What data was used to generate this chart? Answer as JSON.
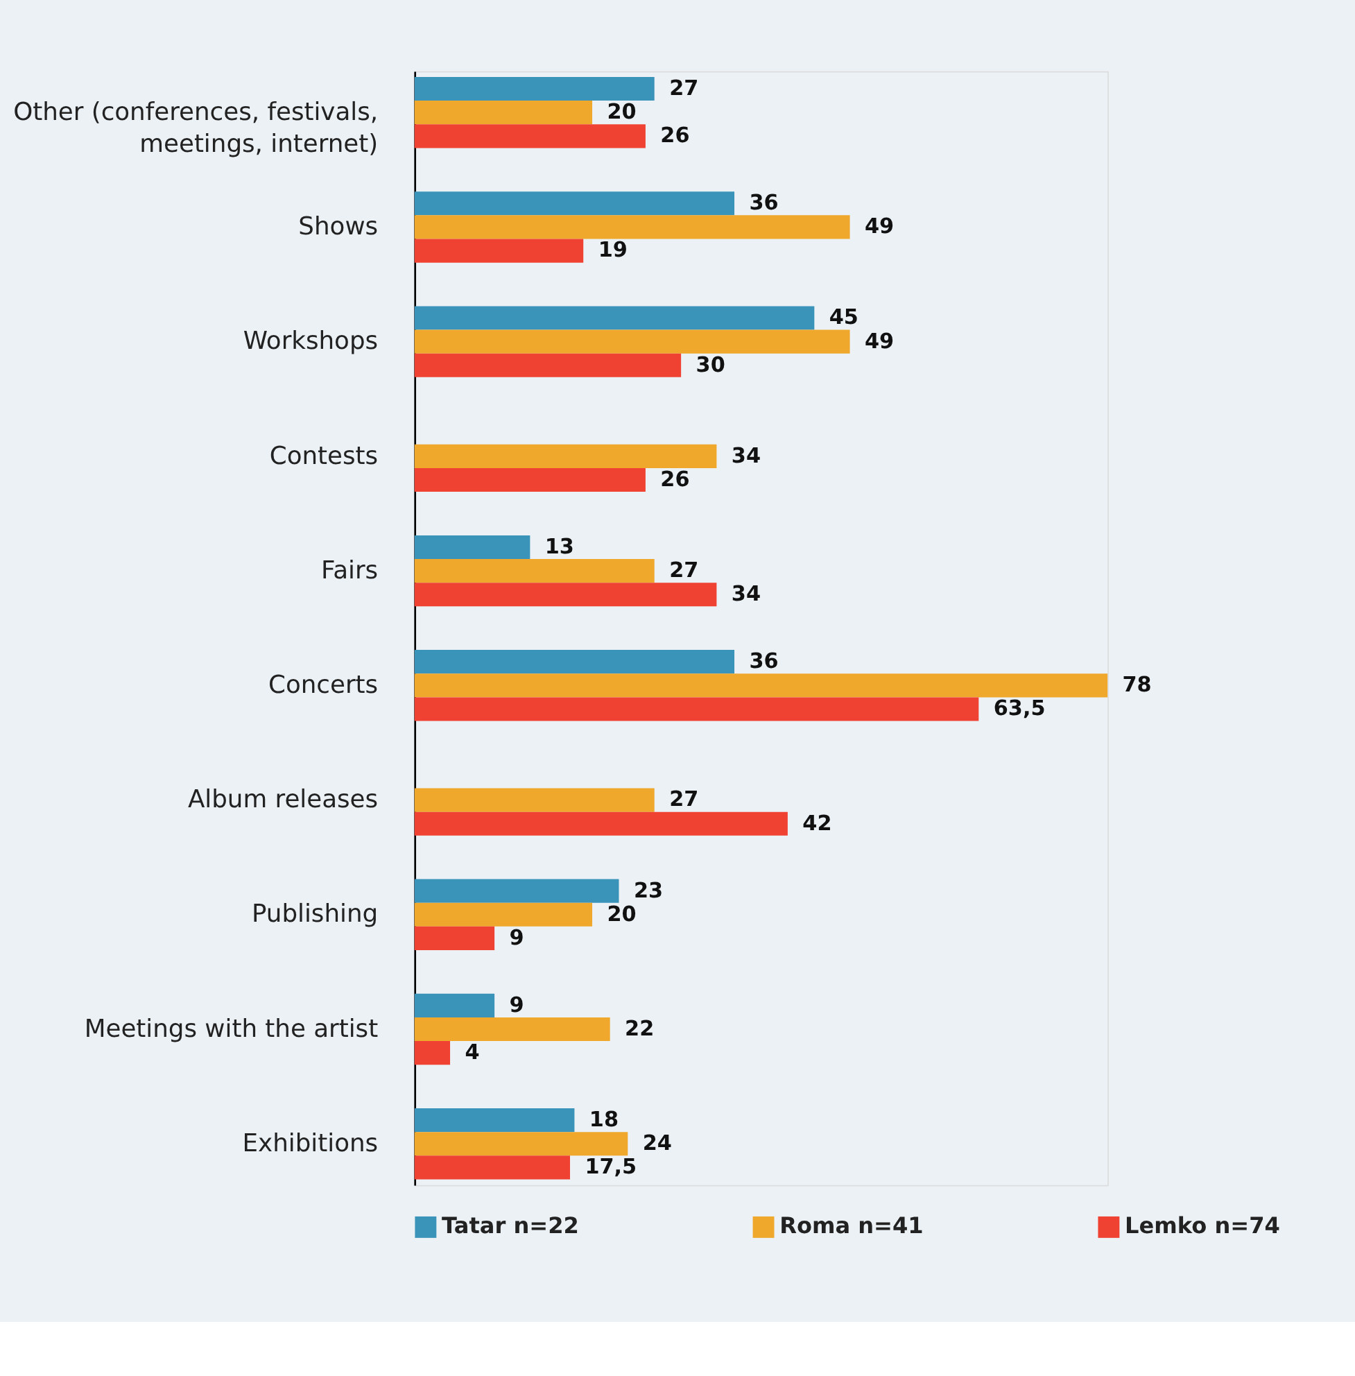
{
  "chart_data": {
    "type": "bar",
    "orientation": "horizontal",
    "categories": [
      "Other (conferences, festivals,\nmeetings, internet)",
      "Shows",
      "Workshops",
      "Contests",
      "Fairs",
      "Concerts",
      "Album releases",
      "Publishing",
      "Meetings with the artist",
      "Exhibitions"
    ],
    "series": [
      {
        "name": "Tatar n=22",
        "color": "#3a93b9",
        "values": [
          27,
          36,
          45,
          null,
          13,
          36,
          null,
          23,
          9,
          18
        ],
        "value_labels": [
          "27",
          "36",
          "45",
          null,
          "13",
          "36",
          null,
          "23",
          "9",
          "18"
        ]
      },
      {
        "name": "Roma n=41",
        "color": "#efa72c",
        "values": [
          20,
          49,
          49,
          34,
          27,
          78,
          27,
          20,
          22,
          24
        ],
        "value_labels": [
          "20",
          "49",
          "49",
          "34",
          "27",
          "78",
          "27",
          "20",
          "22",
          "24"
        ]
      },
      {
        "name": "Lemko n=74",
        "color": "#f04233",
        "values": [
          26,
          19,
          30,
          26,
          34,
          63.5,
          42,
          9,
          4,
          17.5
        ],
        "value_labels": [
          "26",
          "19",
          "30",
          "26",
          "34",
          "63,5",
          "42",
          "9",
          "4",
          "17,5"
        ]
      }
    ],
    "legend": "bottom",
    "tick_labels": "y"
  }
}
